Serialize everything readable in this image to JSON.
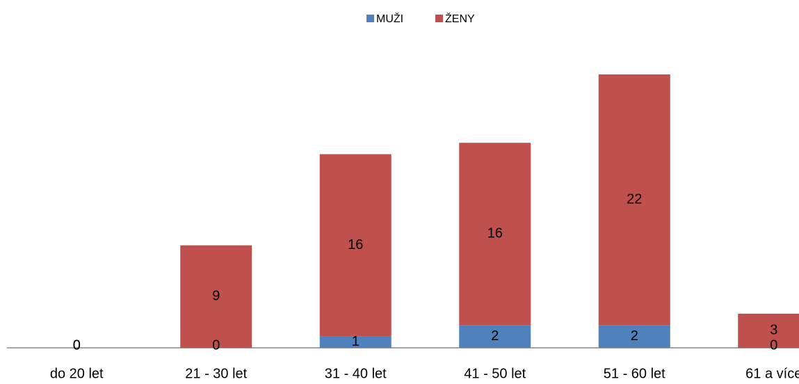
{
  "chart_data": {
    "type": "stacked_bar",
    "categories": [
      "do 20 let",
      "21 - 30 let",
      "31 - 40 let",
      "41 - 50 let",
      "51 - 60 let",
      "61 a více"
    ],
    "series": [
      {
        "name": "MUŽI",
        "color": "#4f81bd",
        "values": [
          0,
          0,
          1,
          2,
          2,
          0
        ]
      },
      {
        "name": "ŽENY",
        "color": "#c0504d",
        "values": [
          0,
          9,
          16,
          16,
          22,
          3
        ]
      }
    ],
    "ylim": [
      0,
      30
    ],
    "legend": "top",
    "grid": false
  }
}
